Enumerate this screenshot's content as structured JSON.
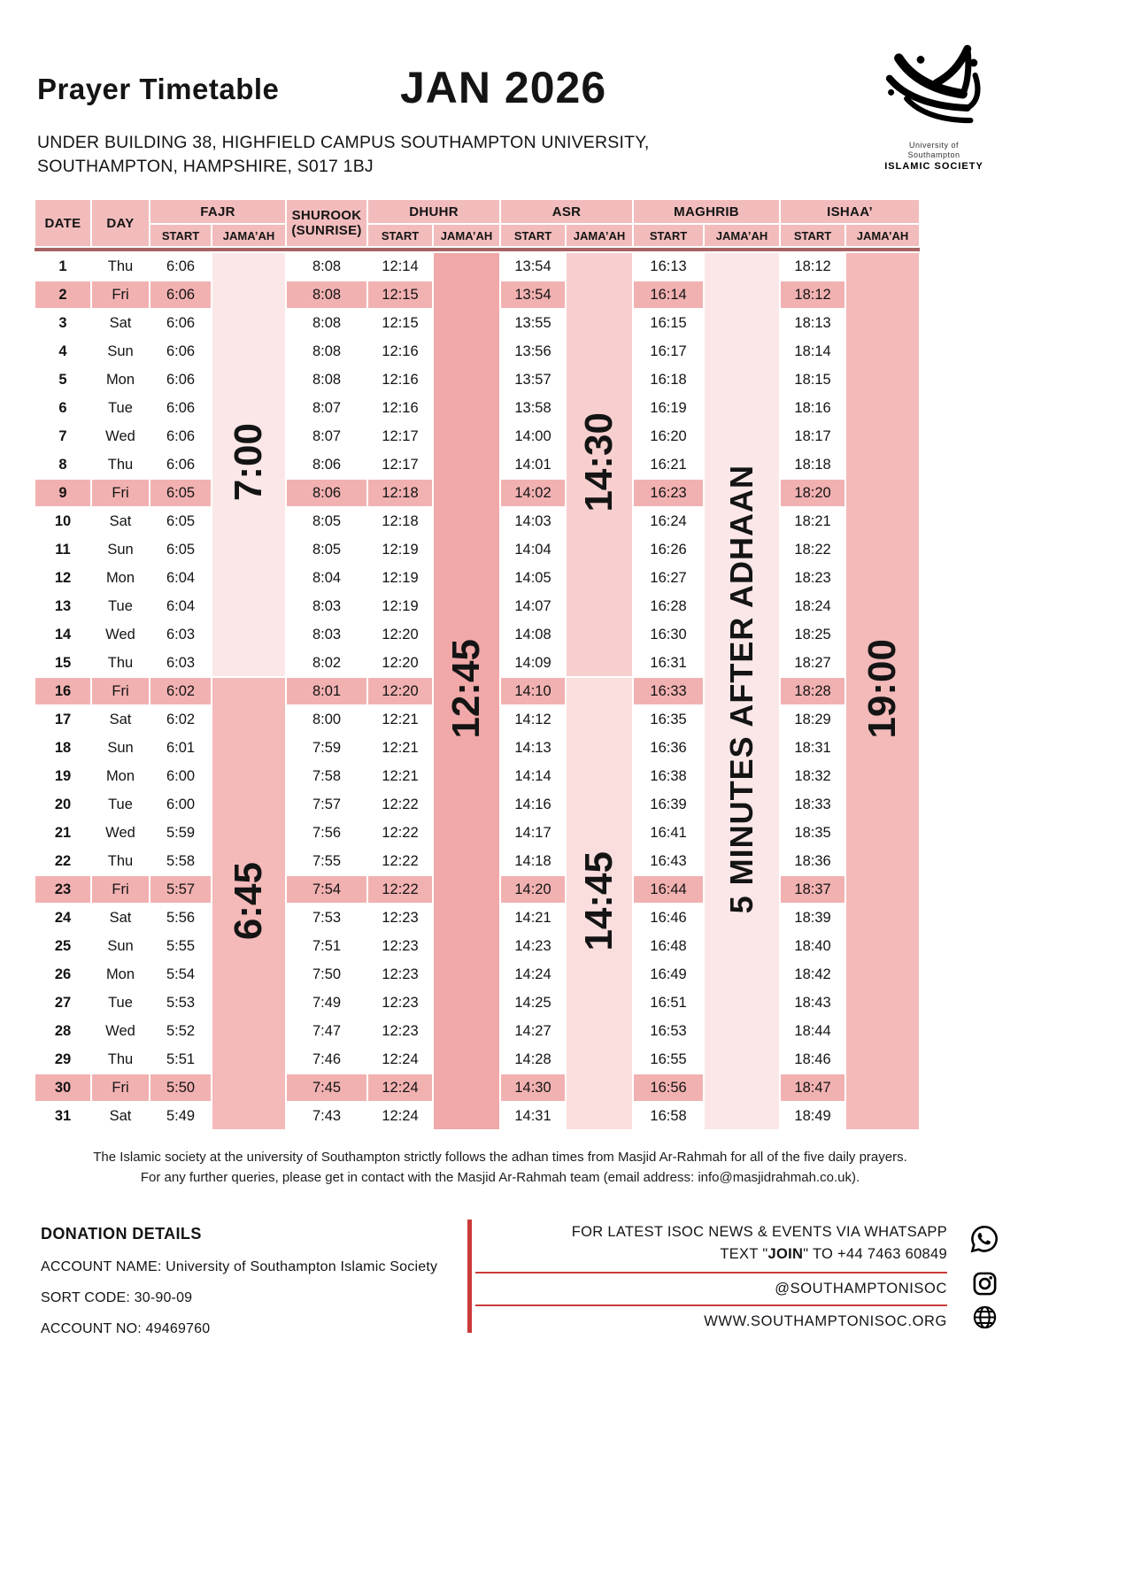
{
  "page": {
    "title": "Prayer Timetable",
    "month": "JAN 2026",
    "address_line1": "UNDER BUILDING 38, HIGHFIELD CAMPUS SOUTHAMPTON UNIVERSITY,",
    "address_line2": "SOUTHAMPTON, HAMPSHIRE, S017 1BJ"
  },
  "logo": {
    "org_line1": "University of",
    "org_line2": "Southampton",
    "org_line3": "ISLAMIC SOCIETY"
  },
  "table": {
    "headers": {
      "date": "DATE",
      "day": "DAY",
      "fajr": "FAJR",
      "shurook_line1": "SHUROOK",
      "shurook_line2": "(SUNRISE)",
      "dhuhr": "DHUHR",
      "asr": "ASR",
      "maghrib": "MAGHRIB",
      "ishaa": "ISHAA’",
      "start": "START",
      "jamaah": "JAMA’AH"
    },
    "jamaah_blocks": {
      "fajr_first": "7:00",
      "fajr_second": "6:45",
      "dhuhr": "12:45",
      "asr_first": "14:30",
      "asr_second": "14:45",
      "maghrib": "5 MINUTES AFTER ADHAAN",
      "ishaa": "19:00"
    },
    "rows": [
      {
        "date": "1",
        "day": "Thu",
        "fajr": "6:06",
        "shurook": "8:08",
        "dhuhr": "12:14",
        "asr": "13:54",
        "maghrib": "16:13",
        "ishaa": "18:12",
        "friday": false
      },
      {
        "date": "2",
        "day": "Fri",
        "fajr": "6:06",
        "shurook": "8:08",
        "dhuhr": "12:15",
        "asr": "13:54",
        "maghrib": "16:14",
        "ishaa": "18:12",
        "friday": true
      },
      {
        "date": "3",
        "day": "Sat",
        "fajr": "6:06",
        "shurook": "8:08",
        "dhuhr": "12:15",
        "asr": "13:55",
        "maghrib": "16:15",
        "ishaa": "18:13",
        "friday": false
      },
      {
        "date": "4",
        "day": "Sun",
        "fajr": "6:06",
        "shurook": "8:08",
        "dhuhr": "12:16",
        "asr": "13:56",
        "maghrib": "16:17",
        "ishaa": "18:14",
        "friday": false
      },
      {
        "date": "5",
        "day": "Mon",
        "fajr": "6:06",
        "shurook": "8:08",
        "dhuhr": "12:16",
        "asr": "13:57",
        "maghrib": "16:18",
        "ishaa": "18:15",
        "friday": false
      },
      {
        "date": "6",
        "day": "Tue",
        "fajr": "6:06",
        "shurook": "8:07",
        "dhuhr": "12:16",
        "asr": "13:58",
        "maghrib": "16:19",
        "ishaa": "18:16",
        "friday": false
      },
      {
        "date": "7",
        "day": "Wed",
        "fajr": "6:06",
        "shurook": "8:07",
        "dhuhr": "12:17",
        "asr": "14:00",
        "maghrib": "16:20",
        "ishaa": "18:17",
        "friday": false
      },
      {
        "date": "8",
        "day": "Thu",
        "fajr": "6:06",
        "shurook": "8:06",
        "dhuhr": "12:17",
        "asr": "14:01",
        "maghrib": "16:21",
        "ishaa": "18:18",
        "friday": false
      },
      {
        "date": "9",
        "day": "Fri",
        "fajr": "6:05",
        "shurook": "8:06",
        "dhuhr": "12:18",
        "asr": "14:02",
        "maghrib": "16:23",
        "ishaa": "18:20",
        "friday": true
      },
      {
        "date": "10",
        "day": "Sat",
        "fajr": "6:05",
        "shurook": "8:05",
        "dhuhr": "12:18",
        "asr": "14:03",
        "maghrib": "16:24",
        "ishaa": "18:21",
        "friday": false
      },
      {
        "date": "11",
        "day": "Sun",
        "fajr": "6:05",
        "shurook": "8:05",
        "dhuhr": "12:19",
        "asr": "14:04",
        "maghrib": "16:26",
        "ishaa": "18:22",
        "friday": false
      },
      {
        "date": "12",
        "day": "Mon",
        "fajr": "6:04",
        "shurook": "8:04",
        "dhuhr": "12:19",
        "asr": "14:05",
        "maghrib": "16:27",
        "ishaa": "18:23",
        "friday": false
      },
      {
        "date": "13",
        "day": "Tue",
        "fajr": "6:04",
        "shurook": "8:03",
        "dhuhr": "12:19",
        "asr": "14:07",
        "maghrib": "16:28",
        "ishaa": "18:24",
        "friday": false
      },
      {
        "date": "14",
        "day": "Wed",
        "fajr": "6:03",
        "shurook": "8:03",
        "dhuhr": "12:20",
        "asr": "14:08",
        "maghrib": "16:30",
        "ishaa": "18:25",
        "friday": false
      },
      {
        "date": "15",
        "day": "Thu",
        "fajr": "6:03",
        "shurook": "8:02",
        "dhuhr": "12:20",
        "asr": "14:09",
        "maghrib": "16:31",
        "ishaa": "18:27",
        "friday": false
      },
      {
        "date": "16",
        "day": "Fri",
        "fajr": "6:02",
        "shurook": "8:01",
        "dhuhr": "12:20",
        "asr": "14:10",
        "maghrib": "16:33",
        "ishaa": "18:28",
        "friday": true
      },
      {
        "date": "17",
        "day": "Sat",
        "fajr": "6:02",
        "shurook": "8:00",
        "dhuhr": "12:21",
        "asr": "14:12",
        "maghrib": "16:35",
        "ishaa": "18:29",
        "friday": false
      },
      {
        "date": "18",
        "day": "Sun",
        "fajr": "6:01",
        "shurook": "7:59",
        "dhuhr": "12:21",
        "asr": "14:13",
        "maghrib": "16:36",
        "ishaa": "18:31",
        "friday": false
      },
      {
        "date": "19",
        "day": "Mon",
        "fajr": "6:00",
        "shurook": "7:58",
        "dhuhr": "12:21",
        "asr": "14:14",
        "maghrib": "16:38",
        "ishaa": "18:32",
        "friday": false
      },
      {
        "date": "20",
        "day": "Tue",
        "fajr": "6:00",
        "shurook": "7:57",
        "dhuhr": "12:22",
        "asr": "14:16",
        "maghrib": "16:39",
        "ishaa": "18:33",
        "friday": false
      },
      {
        "date": "21",
        "day": "Wed",
        "fajr": "5:59",
        "shurook": "7:56",
        "dhuhr": "12:22",
        "asr": "14:17",
        "maghrib": "16:41",
        "ishaa": "18:35",
        "friday": false
      },
      {
        "date": "22",
        "day": "Thu",
        "fajr": "5:58",
        "shurook": "7:55",
        "dhuhr": "12:22",
        "asr": "14:18",
        "maghrib": "16:43",
        "ishaa": "18:36",
        "friday": false
      },
      {
        "date": "23",
        "day": "Fri",
        "fajr": "5:57",
        "shurook": "7:54",
        "dhuhr": "12:22",
        "asr": "14:20",
        "maghrib": "16:44",
        "ishaa": "18:37",
        "friday": true
      },
      {
        "date": "24",
        "day": "Sat",
        "fajr": "5:56",
        "shurook": "7:53",
        "dhuhr": "12:23",
        "asr": "14:21",
        "maghrib": "16:46",
        "ishaa": "18:39",
        "friday": false
      },
      {
        "date": "25",
        "day": "Sun",
        "fajr": "5:55",
        "shurook": "7:51",
        "dhuhr": "12:23",
        "asr": "14:23",
        "maghrib": "16:48",
        "ishaa": "18:40",
        "friday": false
      },
      {
        "date": "26",
        "day": "Mon",
        "fajr": "5:54",
        "shurook": "7:50",
        "dhuhr": "12:23",
        "asr": "14:24",
        "maghrib": "16:49",
        "ishaa": "18:42",
        "friday": false
      },
      {
        "date": "27",
        "day": "Tue",
        "fajr": "5:53",
        "shurook": "7:49",
        "dhuhr": "12:23",
        "asr": "14:25",
        "maghrib": "16:51",
        "ishaa": "18:43",
        "friday": false
      },
      {
        "date": "28",
        "day": "Wed",
        "fajr": "5:52",
        "shurook": "7:47",
        "dhuhr": "12:23",
        "asr": "14:27",
        "maghrib": "16:53",
        "ishaa": "18:44",
        "friday": false
      },
      {
        "date": "29",
        "day": "Thu",
        "fajr": "5:51",
        "shurook": "7:46",
        "dhuhr": "12:24",
        "asr": "14:28",
        "maghrib": "16:55",
        "ishaa": "18:46",
        "friday": false
      },
      {
        "date": "30",
        "day": "Fri",
        "fajr": "5:50",
        "shurook": "7:45",
        "dhuhr": "12:24",
        "asr": "14:30",
        "maghrib": "16:56",
        "ishaa": "18:47",
        "friday": true
      },
      {
        "date": "31",
        "day": "Sat",
        "fajr": "5:49",
        "shurook": "7:43",
        "dhuhr": "12:24",
        "asr": "14:31",
        "maghrib": "16:58",
        "ishaa": "18:49",
        "friday": false
      }
    ]
  },
  "notes": {
    "line1": "The Islamic society at the university of Southampton strictly follows the adhan times from Masjid Ar-Rahmah for all of the five daily prayers.",
    "line2": "For any further queries, please get in contact with the Masjid Ar-Rahmah team (email address: info@masjidrahmah.co.uk)."
  },
  "footer": {
    "donation_title": "DONATION DETAILS",
    "account_name": "ACCOUNT NAME: University of Southampton Islamic Society",
    "sort_code": "SORT CODE: 30-90-09",
    "account_no": "ACCOUNT NO: 49469760",
    "whatsapp_line1": "FOR LATEST ISOC NEWS & EVENTS VIA WHATSAPP",
    "whatsapp_line2_prefix": "TEXT \"",
    "whatsapp_join": "JOIN",
    "whatsapp_line2_suffix": "\" TO +44 7463 60849",
    "instagram": "@SOUTHAMPTONISOC",
    "website": "WWW.SOUTHAMPTONISOC.ORG"
  },
  "colors": {
    "header_pink": "#f2bcbc",
    "friday_highlight": "#f2b1b1",
    "block_light": "#fbe7e7",
    "block_medium": "#f4b9b9",
    "block_dark": "#f0a8a8",
    "rule_maroon": "#a86262",
    "accent_red": "#cc3b3b"
  }
}
